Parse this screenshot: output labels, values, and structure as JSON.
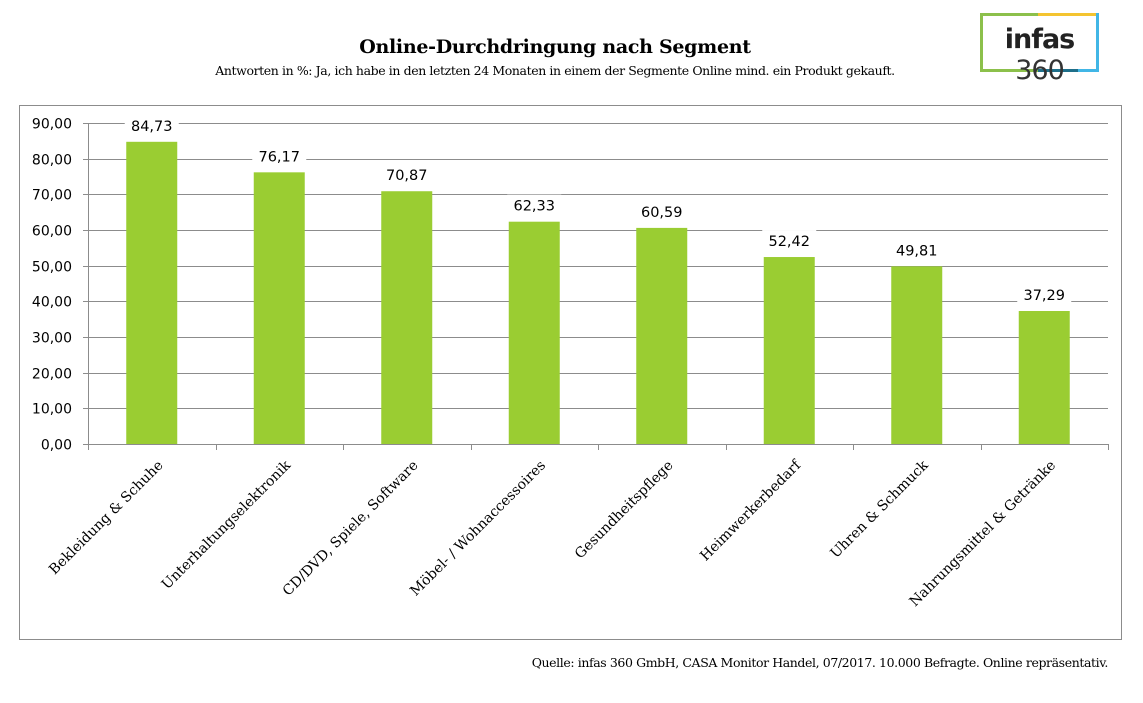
{
  "header": {
    "title": "Online-Durchdringung nach Segment",
    "subtitle": "Antworten in %: Ja, ich habe in den letzten 24 Monaten in einem der Segmente Online mind. ein Produkt gekauft."
  },
  "logo": {
    "brand": "infas",
    "number": "360",
    "colors": [
      "#8cc04b",
      "#f4c430",
      "#41b6e6",
      "#1e6f8a"
    ]
  },
  "footer": {
    "source": "Quelle: infas 360 GmbH, CASA Monitor Handel, 07/2017. 10.000 Befragte. Online repräsentativ."
  },
  "chart_data": {
    "type": "bar",
    "title": "Online-Durchdringung nach Segment",
    "subtitle": "Antworten in %: Ja, ich habe in den letzten 24 Monaten in einem der Segmente Online mind. ein Produkt gekauft.",
    "xlabel": "",
    "ylabel": "",
    "categories": [
      "Bekleidung & Schuhe",
      "Unterhaltungselektronik",
      "CD/DVD, Spiele, Software",
      "Möbel- / Wohnaccessoires",
      "Gesundheitspflege",
      "Heimwerkerbedarf",
      "Uhren & Schmuck",
      "Nahrungsmittel & Getränke"
    ],
    "values": [
      84.73,
      76.17,
      70.87,
      62.33,
      60.59,
      52.42,
      49.81,
      37.29
    ],
    "data_labels": [
      "84,73",
      "76,17",
      "70,87",
      "62,33",
      "60,59",
      "52,42",
      "49,81",
      "37,29"
    ],
    "ylim": [
      0,
      90
    ],
    "yticks": [
      0,
      10,
      20,
      30,
      40,
      50,
      60,
      70,
      80,
      90
    ],
    "ytick_labels": [
      "0,00",
      "10,00",
      "20,00",
      "30,00",
      "40,00",
      "50,00",
      "60,00",
      "70,00",
      "80,00",
      "90,00"
    ],
    "grid": true,
    "legend": "none",
    "bar_color": "#9acd32",
    "grid_color": "#8c8c8c"
  }
}
